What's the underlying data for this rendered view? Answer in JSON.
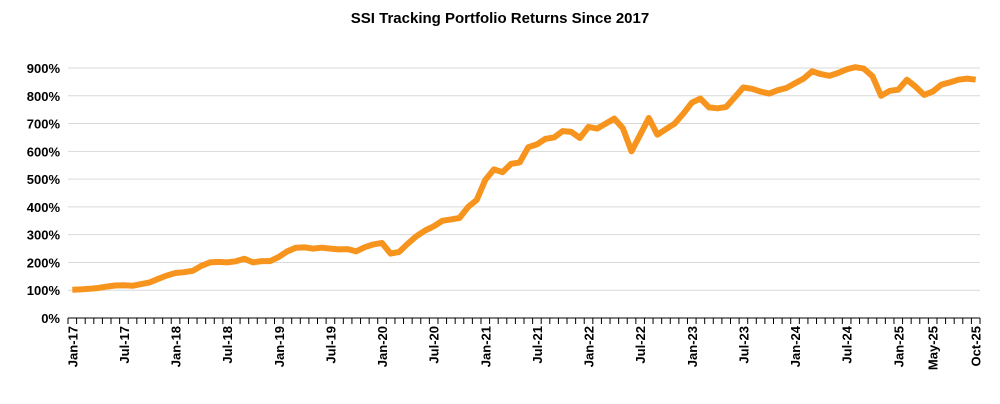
{
  "chart_data": {
    "type": "line",
    "title": "SSI Tracking Portfolio Returns Since 2017",
    "xlabel": "",
    "ylabel": "",
    "ylim": [
      0,
      900
    ],
    "y_tick_labels": [
      "0%",
      "100%",
      "200%",
      "300%",
      "400%",
      "500%",
      "600%",
      "700%",
      "800%",
      "900%"
    ],
    "x_tick_labels": [
      "Jan-17",
      "Jul-17",
      "Jan-18",
      "Jul-18",
      "Jan-19",
      "Jul-19",
      "Jan-20",
      "Jul-20",
      "Jan-21",
      "Jul-21",
      "Jan-22",
      "Jul-22",
      "Jan-23",
      "Jul-23",
      "Jan-24",
      "Jul-24",
      "Jan-25",
      "May-25",
      "Oct-25"
    ],
    "grid": true,
    "legend": "none",
    "line_color": "#F7941D",
    "series": [
      {
        "start": "Jan-17",
        "end": "Oct-25",
        "frequency": "monthly",
        "values": [
          102,
          103,
          105,
          108,
          113,
          117,
          118,
          116,
          122,
          128,
          141,
          153,
          162,
          165,
          170,
          188,
          200,
          202,
          200,
          204,
          213,
          200,
          205,
          205,
          220,
          240,
          253,
          254,
          250,
          253,
          250,
          247,
          248,
          240,
          255,
          265,
          270,
          232,
          238,
          268,
          295,
          315,
          330,
          350,
          355,
          360,
          400,
          425,
          497,
          535,
          525,
          555,
          560,
          615,
          625,
          645,
          650,
          673,
          670,
          648,
          688,
          682,
          700,
          718,
          683,
          600,
          660,
          720,
          660,
          680,
          700,
          735,
          775,
          790,
          758,
          755,
          760,
          795,
          830,
          825,
          815,
          808,
          820,
          828,
          845,
          862,
          888,
          878,
          872,
          882,
          895,
          903,
          898,
          870,
          800,
          818,
          822,
          858,
          833,
          803,
          815,
          840,
          848,
          858,
          862,
          858
        ]
      }
    ]
  }
}
